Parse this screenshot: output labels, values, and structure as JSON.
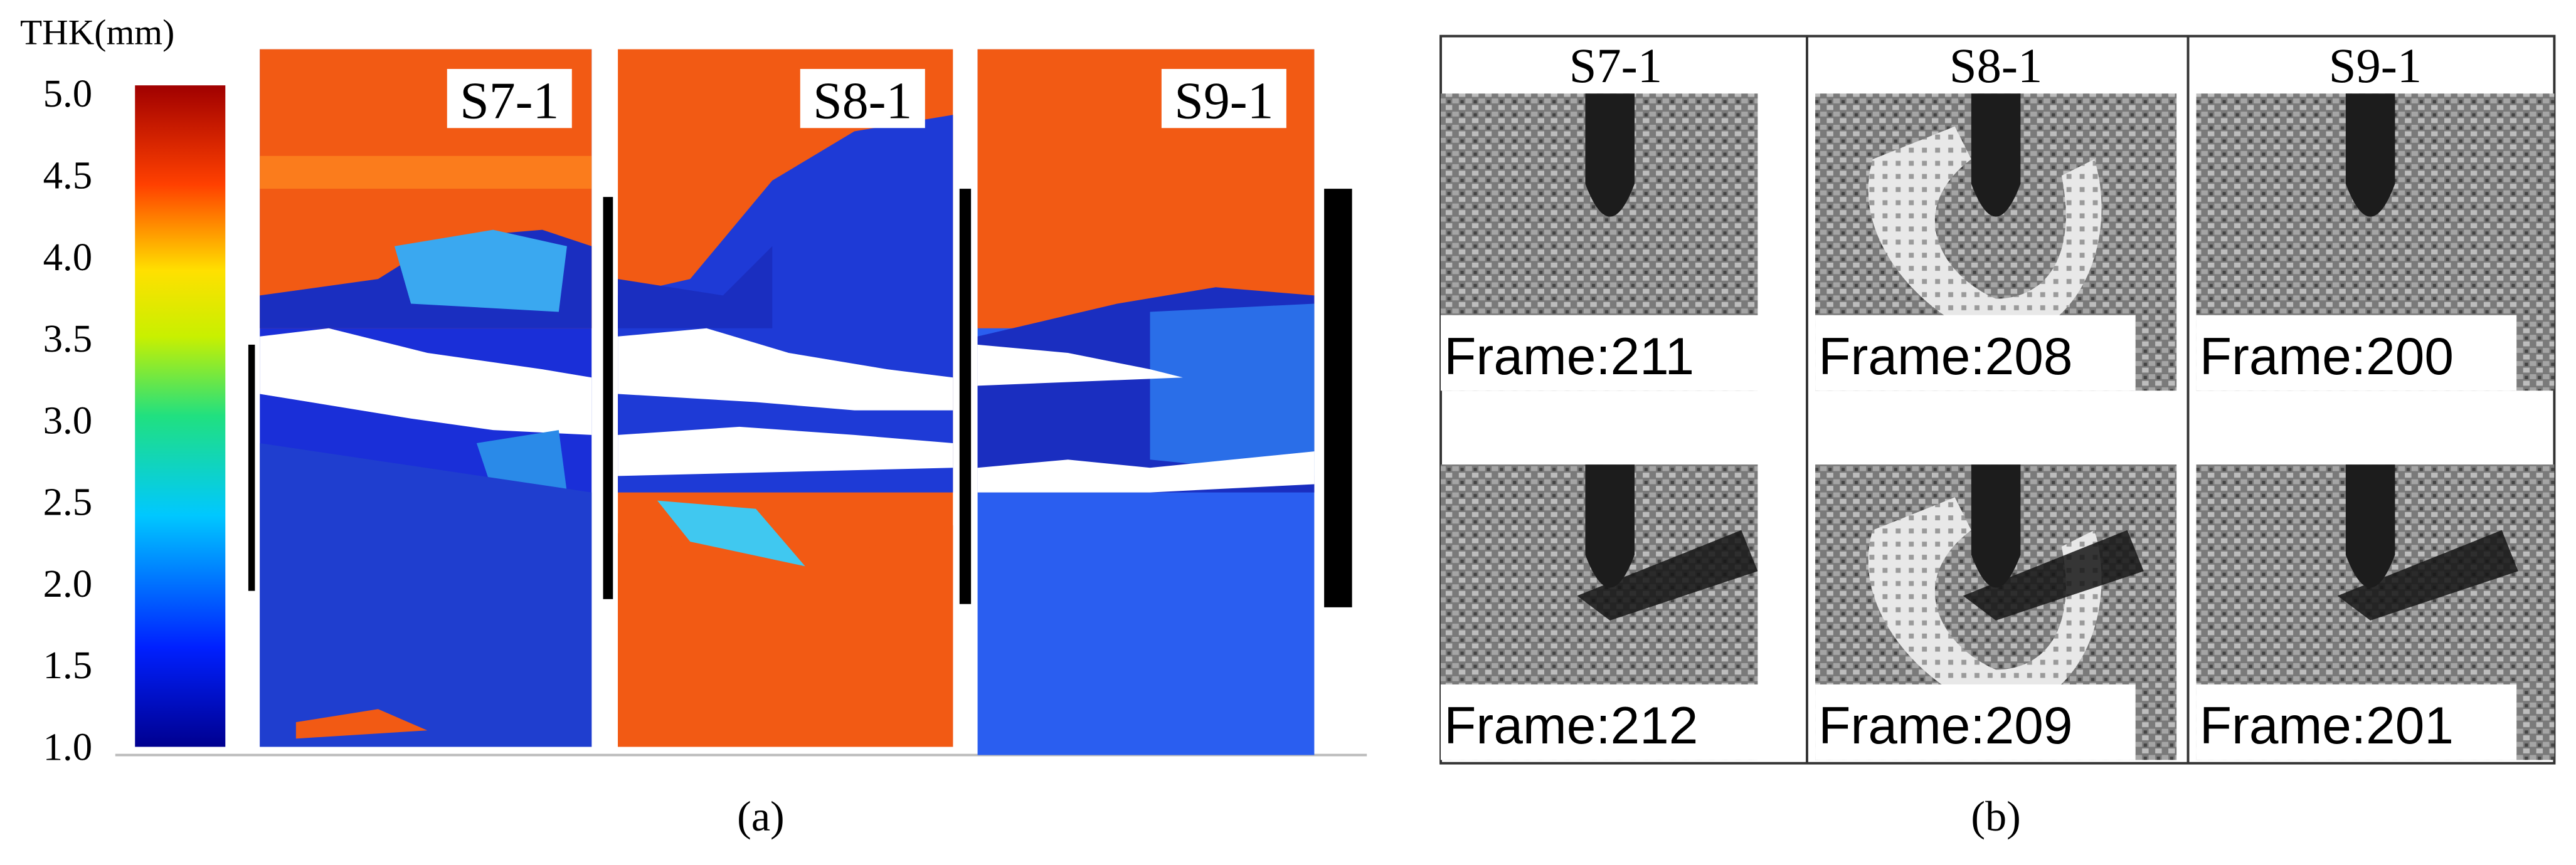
{
  "panel_a": {
    "colorbar_label": "THK(mm)",
    "colorbar_ticks": [
      "5.0",
      "4.5",
      "4.0",
      "3.5",
      "3.0",
      "2.5",
      "2.0",
      "1.5",
      "1.0"
    ],
    "specimens": [
      "S7-1",
      "S8-1",
      "S9-1"
    ],
    "caption": "(a)"
  },
  "panel_b": {
    "columns": [
      "S7-1",
      "S8-1",
      "S9-1"
    ],
    "rows": [
      [
        "Frame:211",
        "Frame:208",
        "Frame:200"
      ],
      [
        "Frame:212",
        "Frame:209",
        "Frame:201"
      ]
    ],
    "caption": "(b)"
  }
}
